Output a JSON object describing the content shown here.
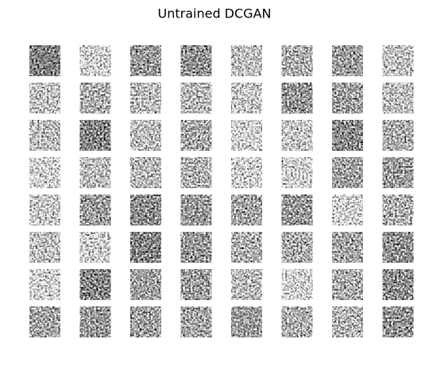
{
  "title": "Untrained DCGAN"
}
